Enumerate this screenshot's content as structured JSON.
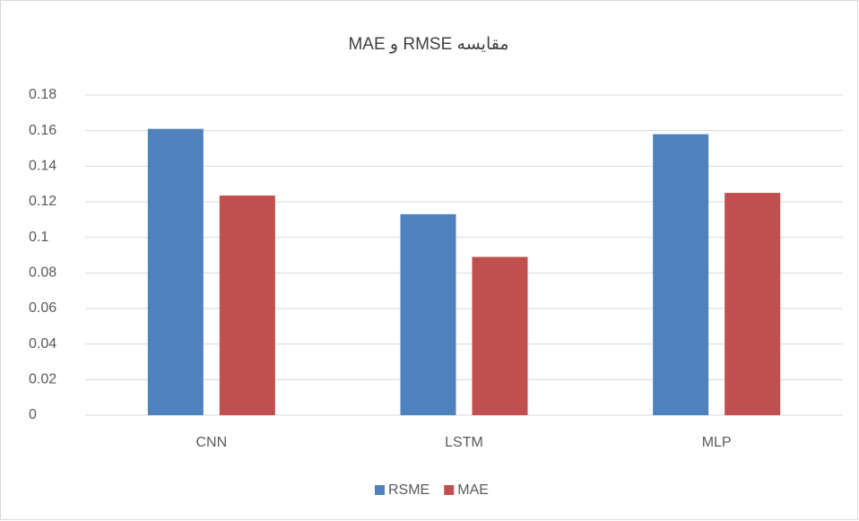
{
  "chart_data": {
    "type": "bar",
    "title": "مقایسه RMSE و MAE",
    "categories": [
      "CNN",
      "LSTM",
      "MLP"
    ],
    "series": [
      {
        "name": "RSME",
        "color": "#4f81bd",
        "values": [
          0.161,
          0.113,
          0.158
        ]
      },
      {
        "name": "MAE",
        "color": "#c0504d",
        "values": [
          0.1235,
          0.089,
          0.125
        ]
      }
    ],
    "ylim": [
      0,
      0.18
    ],
    "yticks": [
      0,
      0.02,
      0.04,
      0.06,
      0.08,
      0.1,
      0.12,
      0.14,
      0.16,
      0.18
    ],
    "grid": true,
    "legend": "bottom"
  }
}
